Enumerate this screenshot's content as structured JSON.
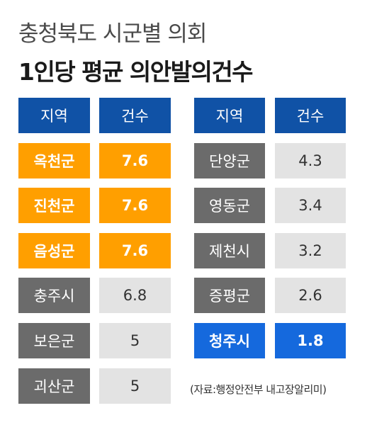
{
  "title_line1": "충청북도 시군별 의회",
  "title_line2": "1인당 평균 의안발의건수",
  "headers": {
    "region": "지역",
    "count": "건수"
  },
  "source": "(자료:행정안전부 내고장알리미)",
  "colors": {
    "header_blue": "#1052a6",
    "highlight_orange": "#ff9f00",
    "region_gray": "#6b6b6b",
    "value_light_gray": "#e3e3e3",
    "top_blue": "#1569dd"
  },
  "chart_data": {
    "type": "table",
    "columns": [
      "지역",
      "건수"
    ],
    "left_table": [
      {
        "region": "옥천군",
        "count": "7.6",
        "style": "highlight"
      },
      {
        "region": "진천군",
        "count": "7.6",
        "style": "highlight"
      },
      {
        "region": "음성군",
        "count": "7.6",
        "style": "highlight"
      },
      {
        "region": "충주시",
        "count": "6.8",
        "style": "normal"
      },
      {
        "region": "보은군",
        "count": "5",
        "style": "normal"
      },
      {
        "region": "괴산군",
        "count": "5",
        "style": "normal"
      }
    ],
    "right_table": [
      {
        "region": "단양군",
        "count": "4.3",
        "style": "normal"
      },
      {
        "region": "영동군",
        "count": "3.4",
        "style": "normal"
      },
      {
        "region": "제천시",
        "count": "3.2",
        "style": "normal"
      },
      {
        "region": "증평군",
        "count": "2.6",
        "style": "normal"
      },
      {
        "region": "청주시",
        "count": "1.8",
        "style": "top"
      }
    ]
  }
}
